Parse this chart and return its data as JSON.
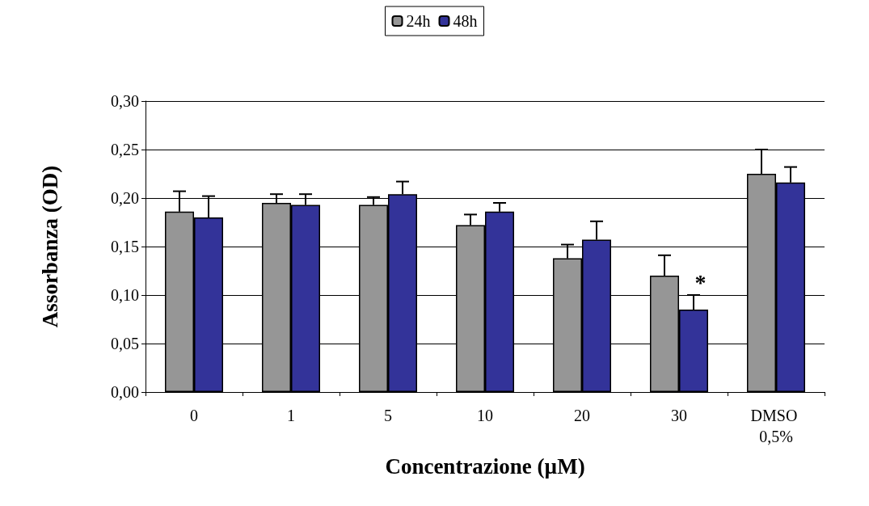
{
  "chart_data": {
    "type": "bar",
    "xlabel": "Concentrazione (µM)",
    "ylabel": "Assorbanza (OD)",
    "categories": [
      "0",
      "1",
      "5",
      "10",
      "20",
      "30",
      "DMSO 0,5%"
    ],
    "series": [
      {
        "name": "24h",
        "color": "#969696",
        "values": [
          0.186,
          0.195,
          0.193,
          0.172,
          0.138,
          0.12,
          0.225
        ],
        "errors": [
          [
            0.186,
            0.207
          ],
          [
            0.195,
            0.204
          ],
          [
            0.193,
            0.201
          ],
          [
            0.172,
            0.183
          ],
          [
            0.138,
            0.152
          ],
          [
            0.12,
            0.141
          ],
          [
            0.225,
            0.25
          ]
        ]
      },
      {
        "name": "48h",
        "color": "#333399",
        "values": [
          0.18,
          0.193,
          0.204,
          0.186,
          0.157,
          0.085,
          0.216
        ],
        "errors": [
          [
            0.18,
            0.202
          ],
          [
            0.193,
            0.204
          ],
          [
            0.204,
            0.217
          ],
          [
            0.186,
            0.195
          ],
          [
            0.157,
            0.176
          ],
          [
            0.085,
            0.1
          ],
          [
            0.216,
            0.232
          ]
        ]
      }
    ],
    "ylim": [
      0,
      0.3
    ],
    "yticks": [
      {
        "value": 0,
        "label": "0,00"
      },
      {
        "value": 0.05,
        "label": "0,05"
      },
      {
        "value": 0.1,
        "label": "0,10"
      },
      {
        "value": 0.15,
        "label": "0,15"
      },
      {
        "value": 0.2,
        "label": "0,20"
      },
      {
        "value": 0.25,
        "label": "0,25"
      },
      {
        "value": 0.3,
        "label": "0,30"
      }
    ],
    "grid": "y",
    "legend": "top",
    "annotations": [
      {
        "text": "*",
        "x": "30",
        "y": 0.1
      }
    ]
  }
}
